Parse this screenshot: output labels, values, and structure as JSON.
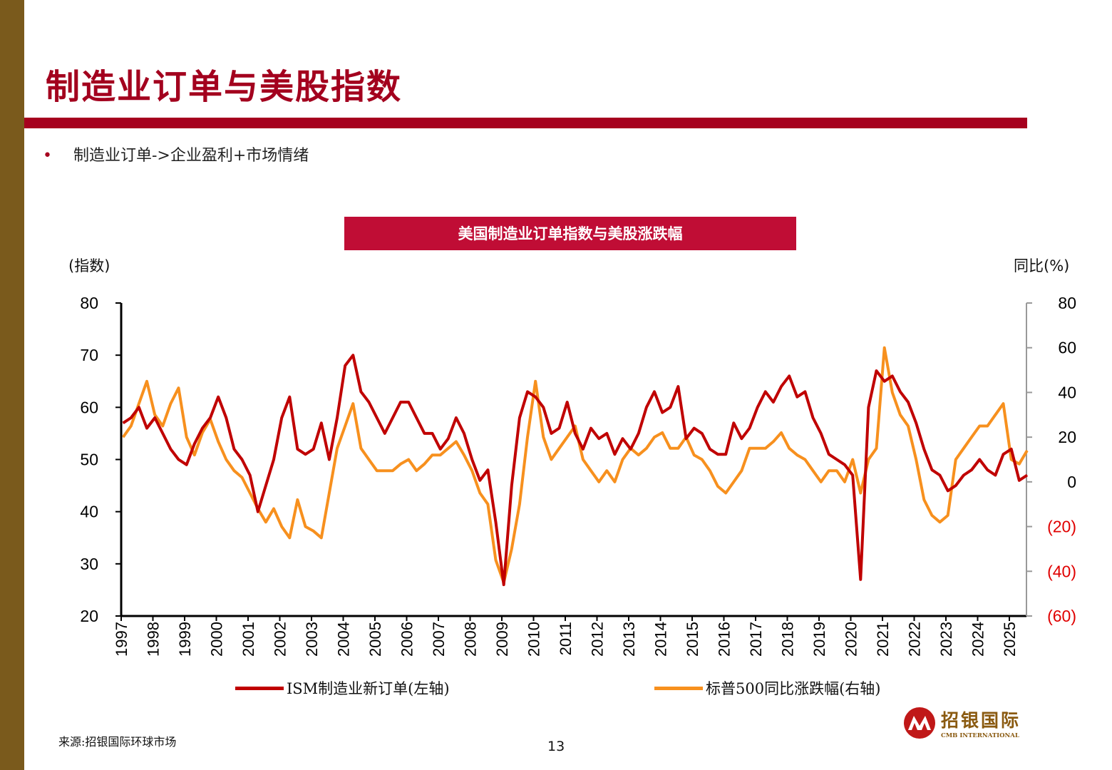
{
  "slide": {
    "title": "制造业订单与美股指数",
    "bullet": "制造业订单->企业盈利+市场情绪",
    "source": "来源:招银国际环球市场",
    "page_number": "13",
    "logo": {
      "cn": "招银国际",
      "en": "CMB INTERNATIONAL"
    },
    "colors": {
      "brand_red": "#a6001e",
      "sidebar": "#7a5a1c",
      "title_box": "#c00d35"
    }
  },
  "chart_data": {
    "type": "line",
    "title": "美国制造业订单指数与美股涨跌幅",
    "ylabel_left": "(指数)",
    "ylabel_right": "同比(%)",
    "ylim_left": [
      20,
      80
    ],
    "ylim_right": [
      -60,
      80
    ],
    "yticks_left": [
      "80",
      "70",
      "60",
      "50",
      "40",
      "30",
      "20"
    ],
    "yticks_right": [
      "80",
      "60",
      "40",
      "20",
      "0",
      "(20)",
      "(40)",
      "(60)"
    ],
    "xticks": [
      "1997",
      "1998",
      "1999",
      "2000",
      "2001",
      "2002",
      "2003",
      "2004",
      "2005",
      "2006",
      "2007",
      "2008",
      "2009",
      "2010",
      "2011",
      "2012",
      "2013",
      "2014",
      "2015",
      "2016",
      "2017",
      "2018",
      "2019",
      "2020",
      "2021",
      "2022",
      "2023",
      "2024",
      "2025"
    ],
    "x_frequency": "quarterly, 1997Q1–2025Q3",
    "grid": false,
    "legend_position": "bottom",
    "series": [
      {
        "name": "ISM制造业新订单(左轴)",
        "axis": "left",
        "color": "#c00000",
        "values": [
          57,
          58,
          60,
          56,
          58,
          55,
          52,
          50,
          49,
          53,
          56,
          58,
          62,
          58,
          52,
          50,
          47,
          40,
          45,
          50,
          58,
          62,
          52,
          51,
          52,
          57,
          50,
          58,
          68,
          70,
          63,
          61,
          58,
          55,
          58,
          61,
          61,
          58,
          55,
          55,
          52,
          54,
          58,
          55,
          50,
          46,
          48,
          38,
          26,
          45,
          58,
          63,
          62,
          60,
          55,
          56,
          61,
          55,
          52,
          56,
          54,
          55,
          51,
          54,
          52,
          55,
          60,
          63,
          59,
          60,
          64,
          54,
          56,
          55,
          52,
          51,
          51,
          57,
          54,
          56,
          60,
          63,
          61,
          64,
          66,
          62,
          63,
          58,
          55,
          51,
          50,
          49,
          47,
          27,
          60,
          67,
          65,
          66,
          63,
          61,
          57,
          52,
          48,
          47,
          44,
          45,
          47,
          48,
          50,
          48,
          47,
          51,
          52,
          46,
          47
        ]
      },
      {
        "name": "标普500同比涨跌幅(右轴)",
        "axis": "right",
        "color": "#f7901e",
        "values": [
          20,
          25,
          35,
          45,
          30,
          25,
          35,
          42,
          20,
          12,
          22,
          28,
          18,
          10,
          5,
          2,
          -5,
          -12,
          -18,
          -12,
          -20,
          -25,
          -8,
          -20,
          -22,
          -25,
          -5,
          15,
          25,
          35,
          15,
          10,
          5,
          5,
          5,
          8,
          10,
          5,
          8,
          12,
          12,
          15,
          18,
          12,
          5,
          -5,
          -10,
          -35,
          -45,
          -30,
          -10,
          20,
          45,
          20,
          10,
          15,
          20,
          25,
          10,
          5,
          0,
          5,
          0,
          10,
          15,
          12,
          15,
          20,
          22,
          15,
          15,
          20,
          12,
          10,
          5,
          -2,
          -5,
          0,
          5,
          15,
          15,
          15,
          18,
          22,
          15,
          12,
          10,
          5,
          0,
          5,
          5,
          0,
          10,
          -5,
          10,
          15,
          60,
          40,
          30,
          25,
          10,
          -8,
          -15,
          -18,
          -15,
          10,
          15,
          20,
          25,
          25,
          30,
          35,
          10,
          8,
          14
        ]
      }
    ]
  }
}
